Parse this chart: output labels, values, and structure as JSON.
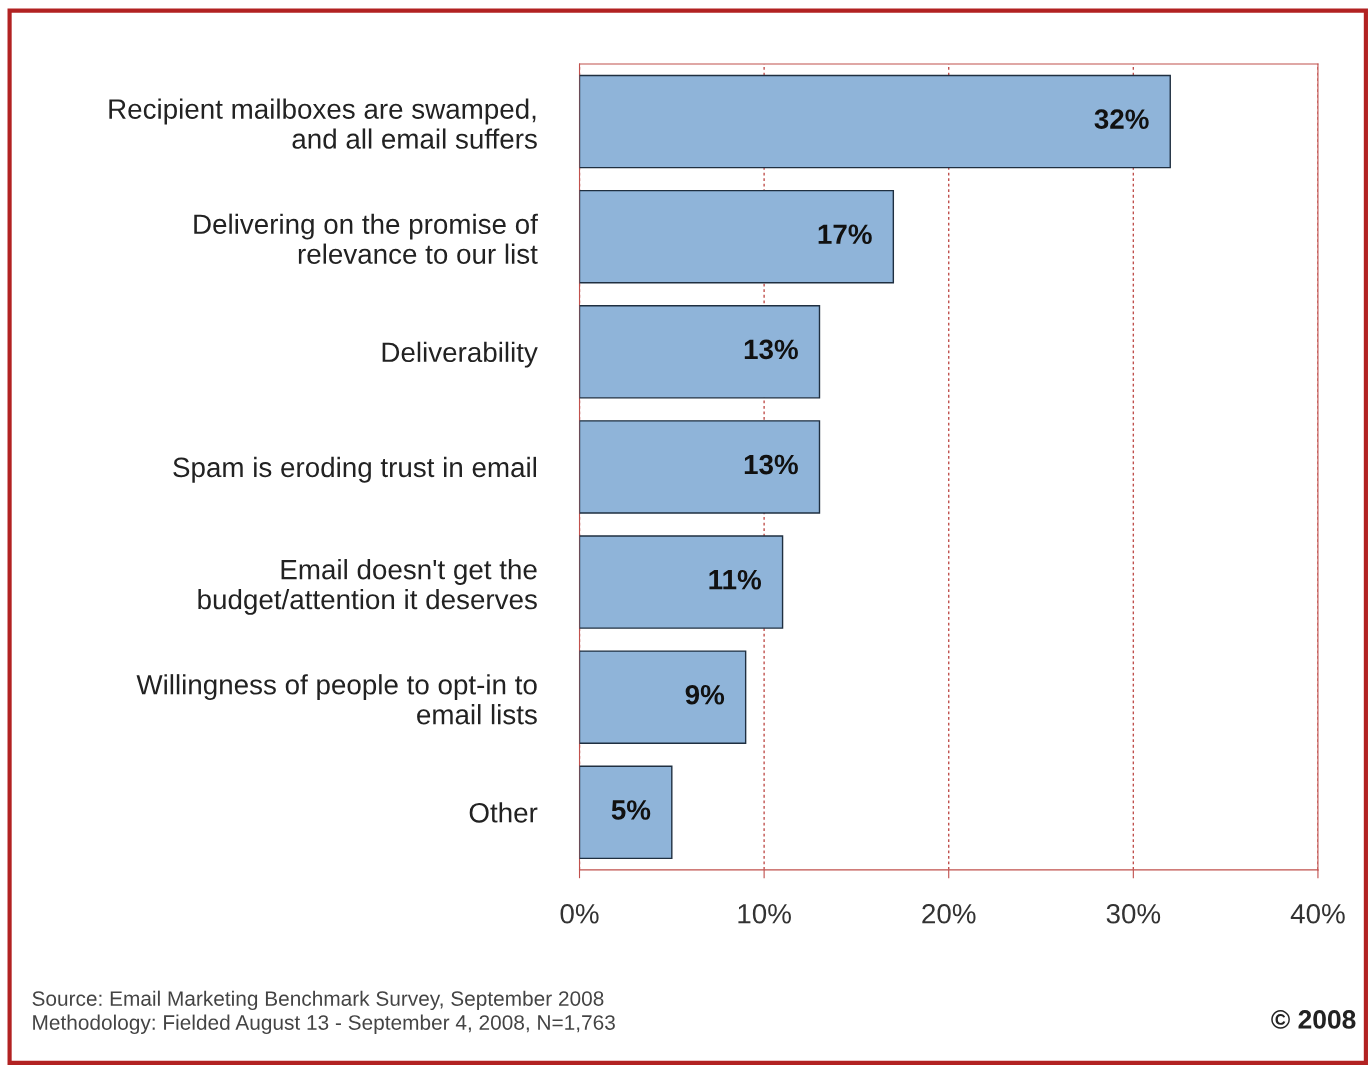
{
  "chart_data": {
    "type": "bar",
    "orientation": "horizontal",
    "categories": [
      "Recipient mailboxes are swamped,\nand all email suffers",
      "Delivering on the promise of\nrelevance to our list",
      "Deliverability",
      "Spam is eroding trust in email",
      "Email doesn't get the\nbudget/attention it deserves",
      "Willingness of people to opt-in to\nemail lists",
      "Other"
    ],
    "values": [
      32,
      17,
      13,
      13,
      11,
      9,
      5
    ],
    "value_labels": [
      "32%",
      "17%",
      "13%",
      "13%",
      "11%",
      "9%",
      "5%"
    ],
    "color": "#8fb4d9",
    "xlim": [
      0,
      40
    ],
    "xticks": [
      {
        "value": 0,
        "label": "0%"
      },
      {
        "value": 10,
        "label": "10%"
      },
      {
        "value": 20,
        "label": "20%"
      },
      {
        "value": 30,
        "label": "30%"
      },
      {
        "value": 40,
        "label": "40%"
      }
    ],
    "grid": "x",
    "annotations": [
      "Source: Email Marketing Benchmark Survey, September 2008\nMethodology: Fielded August 13 - September 4, 2008, N=1,763",
      "© 2008"
    ]
  }
}
